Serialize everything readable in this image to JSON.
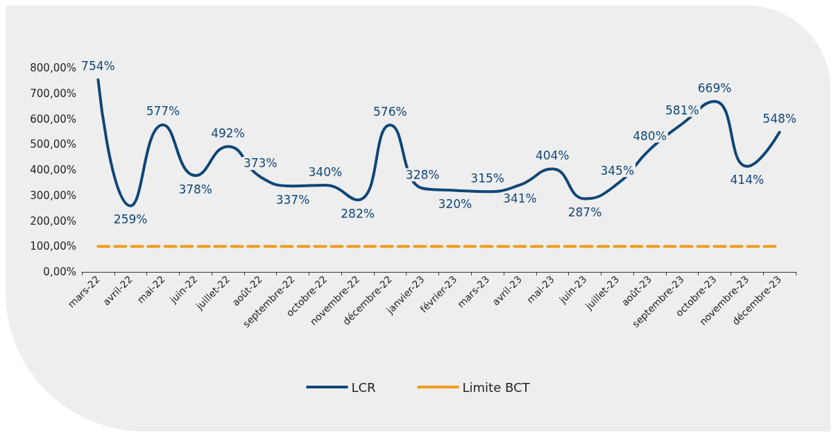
{
  "chart_data": {
    "type": "line",
    "categories": [
      "mars-22",
      "avril-22",
      "mai-22",
      "juin-22",
      "juillet-22",
      "août-22",
      "septembre-22",
      "octobre-22",
      "novembre-22",
      "décembre-22",
      "janvier-23",
      "février-23",
      "mars-23",
      "avril-23",
      "mai-23",
      "juin-23",
      "juillet-23",
      "août-23",
      "septembre-23",
      "octobre-23",
      "novembre-23",
      "décembre-23"
    ],
    "series": [
      {
        "name": "LCR",
        "color": "#0f4677",
        "line_style": "solid",
        "values": [
          754,
          259,
          577,
          378,
          492,
          373,
          337,
          340,
          282,
          576,
          328,
          320,
          315,
          341,
          404,
          287,
          345,
          480,
          581,
          669,
          414,
          548
        ],
        "value_labels": [
          "754%",
          "259%",
          "577%",
          "378%",
          "492%",
          "373%",
          "337%",
          "340%",
          "282%",
          "576%",
          "328%",
          "320%",
          "315%",
          "341%",
          "404%",
          "287%",
          "345%",
          "480%",
          "581%",
          "669%",
          "414%",
          "548%"
        ]
      },
      {
        "name": "Limite BCT",
        "color": "#f29b1d",
        "line_style": "dashed",
        "values": [
          100,
          100,
          100,
          100,
          100,
          100,
          100,
          100,
          100,
          100,
          100,
          100,
          100,
          100,
          100,
          100,
          100,
          100,
          100,
          100,
          100,
          100
        ]
      }
    ],
    "ylim": [
      0,
      800
    ],
    "yticks": [
      {
        "value": 0,
        "label": "0,00%"
      },
      {
        "value": 100,
        "label": "100,00%"
      },
      {
        "value": 200,
        "label": "200,00%"
      },
      {
        "value": 300,
        "label": "300,00%"
      },
      {
        "value": 400,
        "label": "400,00%"
      },
      {
        "value": 500,
        "label": "500,00%"
      },
      {
        "value": 600,
        "label": "600,00%"
      },
      {
        "value": 700,
        "label": "700,00%"
      },
      {
        "value": 800,
        "label": "800,00%"
      }
    ],
    "grid": false,
    "legend": "bottom",
    "marker": "none"
  }
}
